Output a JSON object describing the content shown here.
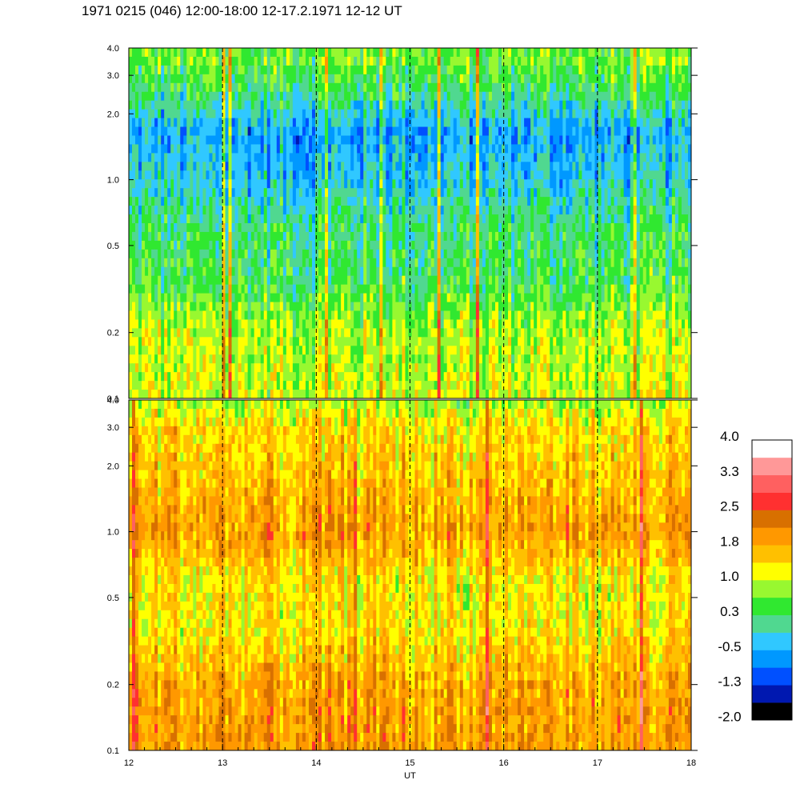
{
  "title": "1971 0215 (046) 12:00-18:00 12-17.2.1971  12-12 UT",
  "chart_data": {
    "type": "heatmap",
    "x_label": "UT",
    "x_range": [
      12,
      18
    ],
    "x_ticks": [
      "12",
      "13",
      "14",
      "15",
      "16",
      "17",
      "18"
    ],
    "x_dashed_gridlines": [
      13,
      14,
      15,
      16,
      17
    ],
    "y_scale": "log",
    "panels": [
      {
        "y_range": [
          0.1,
          4.0
        ],
        "y_ticks": [
          "4.0",
          "3.0",
          "2.0",
          "1.0",
          "0.5",
          "0.2",
          "0.1"
        ],
        "y_tick_values": [
          4.0,
          3.0,
          2.0,
          1.0,
          0.5,
          0.2,
          0.1
        ],
        "levels_by_frequency": [
          {
            "y": 3.5,
            "value": 0.6
          },
          {
            "y": 2.5,
            "value": 0.2
          },
          {
            "y": 1.6,
            "value": -0.6
          },
          {
            "y": 1.0,
            "value": -0.3
          },
          {
            "y": 0.6,
            "value": 0.2
          },
          {
            "y": 0.35,
            "value": 0.3
          },
          {
            "y": 0.2,
            "value": 0.9
          },
          {
            "y": 0.12,
            "value": 1.0
          }
        ]
      },
      {
        "y_range": [
          0.1,
          4.0
        ],
        "y_ticks": [
          "4.0",
          "3.0",
          "2.0",
          "1.0",
          "0.5",
          "0.2",
          "0.1"
        ],
        "y_tick_values": [
          4.0,
          3.0,
          2.0,
          1.0,
          0.5,
          0.2,
          0.1
        ],
        "levels_by_frequency": [
          {
            "y": 3.8,
            "value": 0.9
          },
          {
            "y": 3.0,
            "value": 1.4
          },
          {
            "y": 2.0,
            "value": 1.5
          },
          {
            "y": 1.0,
            "value": 1.9
          },
          {
            "y": 0.6,
            "value": 1.3
          },
          {
            "y": 0.35,
            "value": 1.3
          },
          {
            "y": 0.2,
            "value": 1.8
          },
          {
            "y": 0.12,
            "value": 1.9
          }
        ]
      }
    ],
    "colorbar": {
      "labels": [
        "4.0",
        "3.3",
        "2.5",
        "1.8",
        "1.0",
        "0.3",
        "-0.5",
        "-1.3",
        "-2.0"
      ],
      "min": -2.0,
      "max": 4.0,
      "colors": [
        "#000000",
        "#0018b0",
        "#0050ff",
        "#0098ff",
        "#30c8ff",
        "#50d890",
        "#30e830",
        "#98f830",
        "#ffff00",
        "#ffc000",
        "#ff9800",
        "#d87000",
        "#ff3030",
        "#ff6060",
        "#ff9898",
        "#ffffff"
      ]
    }
  }
}
